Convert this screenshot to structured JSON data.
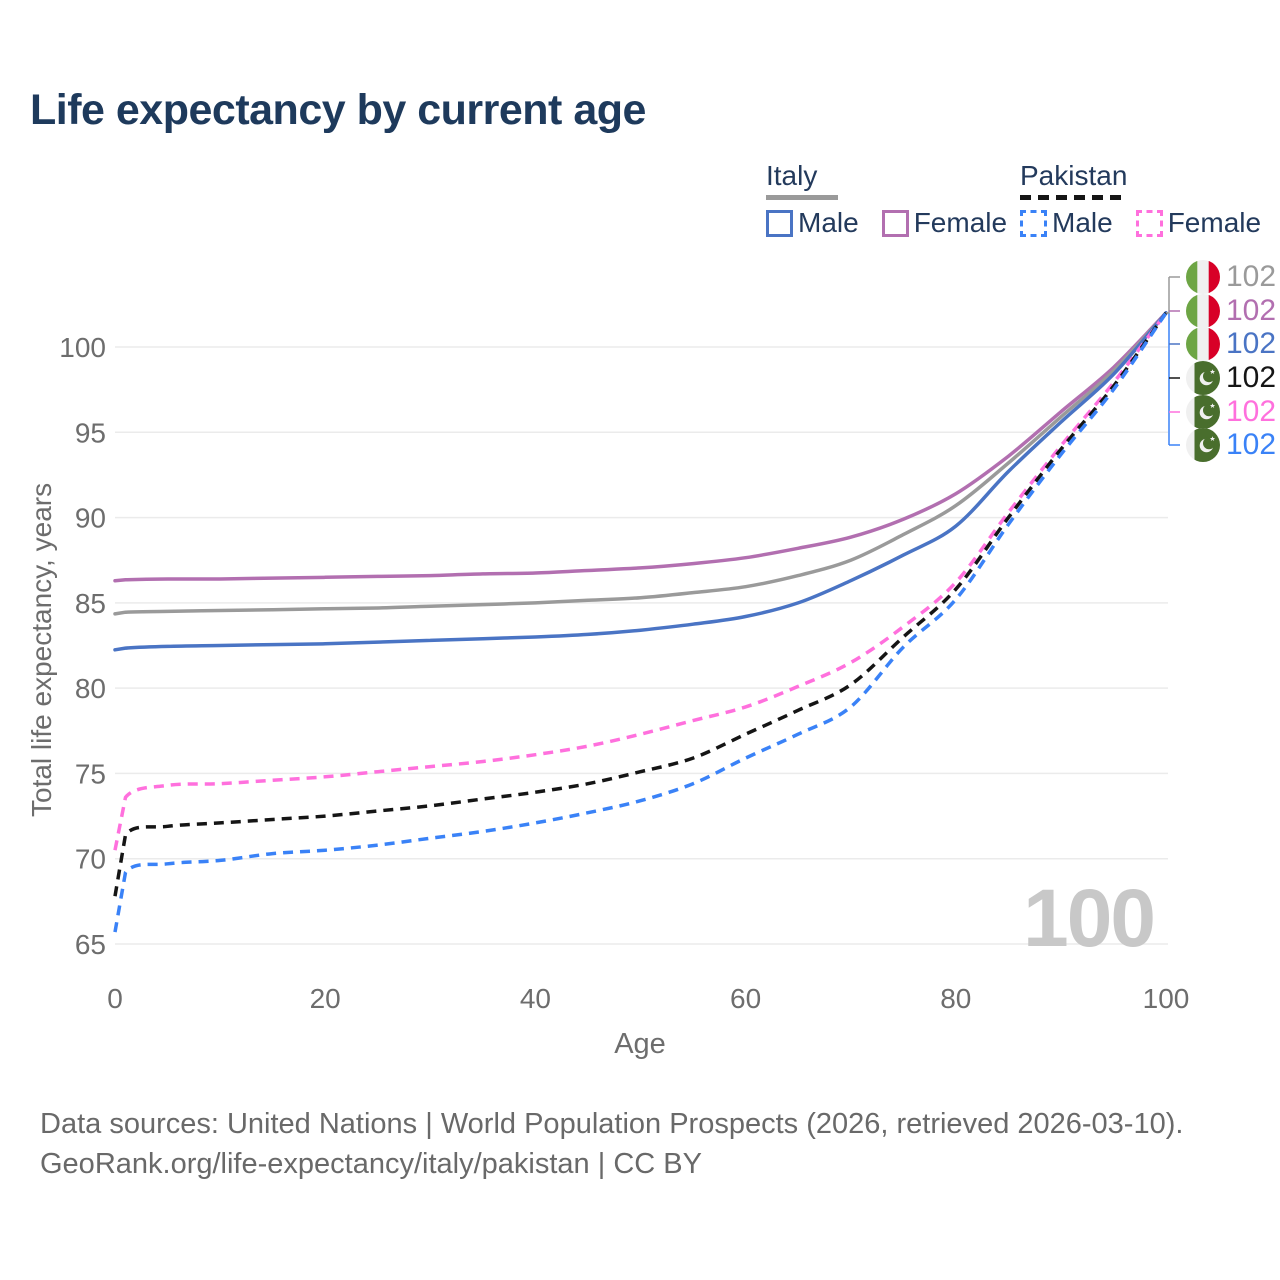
{
  "title": "Life expectancy by current age",
  "legend": {
    "groups": [
      {
        "label": "Italy",
        "line_style": "solid",
        "swatch_color": "#9a9a9a",
        "items": [
          {
            "label": "Male",
            "color": "#4a74c4",
            "dashed": false
          },
          {
            "label": "Female",
            "color": "#b26fb0",
            "dashed": false
          }
        ]
      },
      {
        "label": "Pakistan",
        "line_style": "dashed",
        "swatch_color": "#151515",
        "items": [
          {
            "label": "Male",
            "color": "#3a82f7",
            "dashed": true
          },
          {
            "label": "Female",
            "color": "#ff70dd",
            "dashed": true
          }
        ]
      }
    ]
  },
  "end_labels": [
    {
      "value": "102",
      "flag": "italy-flag",
      "color": "#9a9a9a",
      "series": "Italy"
    },
    {
      "value": "102",
      "flag": "italy-flag",
      "color": "#b26fb0",
      "series": "Italy Female"
    },
    {
      "value": "102",
      "flag": "italy-flag",
      "color": "#4a74c4",
      "series": "Italy Male"
    },
    {
      "value": "102",
      "flag": "pakistan-flag",
      "color": "#151515",
      "series": "Pakistan"
    },
    {
      "value": "102",
      "flag": "pakistan-flag",
      "color": "#ff70dd",
      "series": "Pakistan Female"
    },
    {
      "value": "102",
      "flag": "pakistan-flag",
      "color": "#3a82f7",
      "series": "Pakistan Male"
    }
  ],
  "watermark": "100",
  "footer": {
    "line1": "Data sources: United Nations | World Population Prospects (2026, retrieved 2026-03-10).",
    "line2": "GeoRank.org/life-expectancy/italy/pakistan | CC BY"
  },
  "chart_data": {
    "type": "line",
    "title": "Life expectancy by current age",
    "xlabel": "Age",
    "ylabel": "Total life expectancy, years",
    "x_ticks": [
      0,
      20,
      40,
      60,
      80,
      100
    ],
    "y_ticks": [
      65,
      70,
      75,
      80,
      85,
      90,
      95,
      100
    ],
    "xlim": [
      0,
      100
    ],
    "ylim": [
      65,
      102.5
    ],
    "grid": true,
    "legend_position": "top-right",
    "x": [
      0,
      1,
      5,
      10,
      15,
      20,
      25,
      30,
      35,
      40,
      45,
      50,
      55,
      60,
      65,
      70,
      75,
      80,
      85,
      90,
      95,
      100
    ],
    "series": [
      {
        "id": "italy-female",
        "name": "Italy Female",
        "country": "Italy",
        "sex": "Female",
        "color": "#b26fb0",
        "dashed": false,
        "values": [
          86.3,
          86.35,
          86.4,
          86.4,
          86.45,
          86.5,
          86.55,
          86.6,
          86.7,
          86.75,
          86.9,
          87.05,
          87.3,
          87.65,
          88.2,
          88.85,
          89.9,
          91.4,
          93.6,
          96.2,
          98.8,
          102
        ]
      },
      {
        "id": "italy-total",
        "name": "Italy",
        "country": "Italy",
        "sex": "Both",
        "color": "#9a9a9a",
        "dashed": false,
        "values": [
          84.35,
          84.45,
          84.5,
          84.55,
          84.6,
          84.65,
          84.7,
          84.8,
          84.9,
          85.0,
          85.15,
          85.3,
          85.6,
          85.95,
          86.6,
          87.5,
          89.0,
          90.7,
          93.2,
          95.9,
          98.6,
          102
        ]
      },
      {
        "id": "italy-male",
        "name": "Italy Male",
        "country": "Italy",
        "sex": "Male",
        "color": "#4a74c4",
        "dashed": false,
        "values": [
          82.25,
          82.35,
          82.45,
          82.5,
          82.55,
          82.6,
          82.7,
          82.8,
          82.9,
          83.0,
          83.15,
          83.4,
          83.75,
          84.2,
          85.0,
          86.3,
          87.8,
          89.5,
          92.7,
          95.6,
          98.4,
          102
        ]
      },
      {
        "id": "pakistan-female",
        "name": "Pakistan Female",
        "country": "Pakistan",
        "sex": "Female",
        "color": "#ff70dd",
        "dashed": true,
        "values": [
          70.5,
          73.6,
          74.3,
          74.4,
          74.6,
          74.8,
          75.1,
          75.4,
          75.7,
          76.1,
          76.6,
          77.3,
          78.1,
          78.9,
          80.1,
          81.5,
          83.6,
          86.2,
          90.3,
          94.2,
          97.9,
          102
        ]
      },
      {
        "id": "pakistan-total",
        "name": "Pakistan",
        "country": "Pakistan",
        "sex": "Both",
        "color": "#151515",
        "dashed": true,
        "values": [
          67.8,
          71.4,
          71.9,
          72.1,
          72.3,
          72.5,
          72.8,
          73.1,
          73.5,
          73.9,
          74.4,
          75.1,
          75.9,
          77.3,
          78.7,
          80.2,
          83.0,
          85.8,
          90.0,
          94.0,
          97.7,
          102
        ]
      },
      {
        "id": "pakistan-male",
        "name": "Pakistan Male",
        "country": "Pakistan",
        "sex": "Male",
        "color": "#3a82f7",
        "dashed": true,
        "values": [
          65.7,
          69.2,
          69.7,
          69.9,
          70.3,
          70.5,
          70.8,
          71.2,
          71.6,
          72.1,
          72.7,
          73.4,
          74.4,
          75.9,
          77.3,
          78.9,
          82.4,
          85.2,
          89.6,
          93.7,
          97.5,
          102
        ]
      }
    ]
  }
}
